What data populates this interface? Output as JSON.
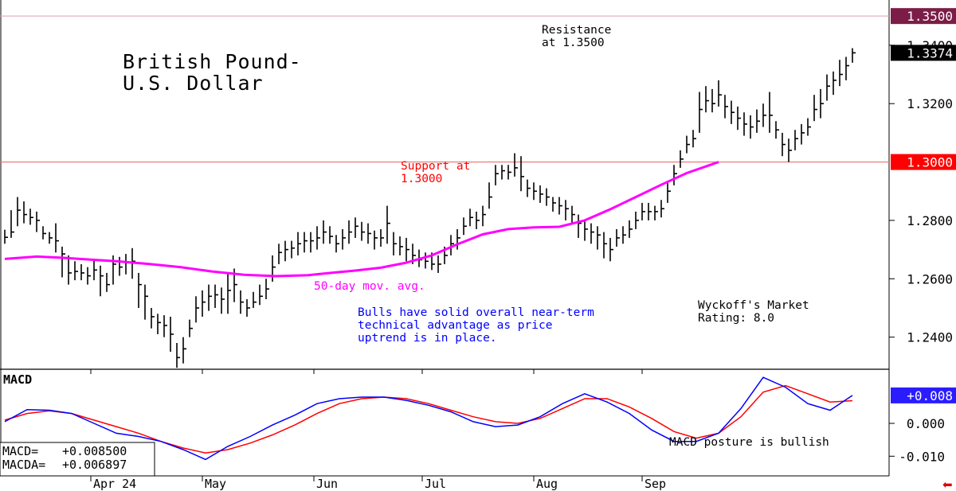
{
  "chart_data": {
    "type": "ohlc",
    "title": "British Pound-\nU.S. Dollar",
    "title_lines": [
      "British Pound-",
      "U.S. Dollar"
    ],
    "y_ticks": [
      "1.3400",
      "1.3200",
      "1.2800",
      "1.2600",
      "1.2400"
    ],
    "y_tick_values": [
      1.34,
      1.32,
      1.28,
      1.26,
      1.24
    ],
    "ylim": [
      1.229,
      1.3555
    ],
    "last_price_label": "1.3374",
    "last_price": 1.3374,
    "resistance": {
      "value": 1.35,
      "label": "1.3500",
      "text_lines": [
        "Resistance",
        "at 1.3500"
      ]
    },
    "support": {
      "value": 1.3,
      "label": "1.3000",
      "text_lines": [
        "Support at",
        "1.3000"
      ]
    },
    "ma_label": "50-day mov. avg.",
    "ma_series": [
      1.2668,
      1.2672,
      1.2676,
      1.2672,
      1.2667,
      1.266,
      1.2651,
      1.264,
      1.2625,
      1.2614,
      1.2609,
      1.2612,
      1.262,
      1.2628,
      1.2638,
      1.2655,
      1.268,
      1.2718,
      1.2752,
      1.277,
      1.2776,
      1.2778,
      1.28,
      1.2838,
      1.288,
      1.2922,
      1.2962,
      1.3
    ],
    "ma_x_days": [
      0,
      5,
      10,
      18,
      25,
      35,
      45,
      55,
      65,
      75,
      85,
      95,
      102,
      110,
      118,
      126,
      134,
      142,
      150,
      158,
      166,
      174,
      182,
      190,
      198,
      206,
      214,
      224
    ],
    "comment_lines": [
      "Bulls have solid overall near-term",
      "technical advantage as price",
      "uptrend is in place."
    ],
    "rating_lines": [
      "Wyckoff's Market",
      "Rating: 8.0"
    ],
    "x_ticks": [
      "Apr 24",
      "May",
      "Jun",
      "Jul",
      "Aug",
      "Sep"
    ],
    "x_tick_days": [
      27,
      62,
      97,
      131,
      166,
      200
    ],
    "bars": [
      [
        0,
        1.2768,
        1.2742,
        1.272
      ],
      [
        2,
        1.2835,
        1.276,
        1.274
      ],
      [
        4,
        1.288,
        1.2835,
        1.278
      ],
      [
        6,
        1.2865,
        1.282,
        1.279
      ],
      [
        8,
        1.284,
        1.281,
        1.2785
      ],
      [
        10,
        1.283,
        1.28,
        1.276
      ],
      [
        12,
        1.278,
        1.2755,
        1.2735
      ],
      [
        14,
        1.276,
        1.274,
        1.272
      ],
      [
        16,
        1.279,
        1.273,
        1.269
      ],
      [
        18,
        1.271,
        1.2685,
        1.2605
      ],
      [
        20,
        1.268,
        1.262,
        1.258
      ],
      [
        22,
        1.266,
        1.2625,
        1.2595
      ],
      [
        24,
        1.265,
        1.262,
        1.2595
      ],
      [
        26,
        1.264,
        1.261,
        1.258
      ],
      [
        28,
        1.2665,
        1.263,
        1.2595
      ],
      [
        30,
        1.2645,
        1.261,
        1.254
      ],
      [
        32,
        1.262,
        1.258,
        1.2555
      ],
      [
        34,
        1.268,
        1.265,
        1.258
      ],
      [
        36,
        1.2675,
        1.264,
        1.261
      ],
      [
        38,
        1.2685,
        1.2655,
        1.2615
      ],
      [
        40,
        1.2705,
        1.266,
        1.26
      ],
      [
        42,
        1.262,
        1.258,
        1.25
      ],
      [
        44,
        1.258,
        1.254,
        1.246
      ],
      [
        46,
        1.25,
        1.247,
        1.243
      ],
      [
        48,
        1.248,
        1.245,
        1.241
      ],
      [
        50,
        1.2475,
        1.244,
        1.24
      ],
      [
        52,
        1.247,
        1.241,
        1.235
      ],
      [
        54,
        1.238,
        1.233,
        1.2295
      ],
      [
        56,
        1.24,
        1.236,
        1.231
      ],
      [
        58,
        1.246,
        1.243,
        1.24
      ],
      [
        60,
        1.254,
        1.25,
        1.245
      ],
      [
        62,
        1.256,
        1.252,
        1.247
      ],
      [
        64,
        1.258,
        1.254,
        1.249
      ],
      [
        66,
        1.258,
        1.2545,
        1.25
      ],
      [
        68,
        1.257,
        1.253,
        1.248
      ],
      [
        70,
        1.262,
        1.256,
        1.248
      ],
      [
        72,
        1.2635,
        1.258,
        1.252
      ],
      [
        74,
        1.256,
        1.252,
        1.248
      ],
      [
        76,
        1.253,
        1.25,
        1.247
      ],
      [
        78,
        1.2555,
        1.252,
        1.25
      ],
      [
        80,
        1.258,
        1.254,
        1.251
      ],
      [
        82,
        1.26,
        1.2565,
        1.253
      ],
      [
        84,
        1.268,
        1.264,
        1.259
      ],
      [
        86,
        1.272,
        1.269,
        1.265
      ],
      [
        88,
        1.273,
        1.27,
        1.266
      ],
      [
        90,
        1.273,
        1.2705,
        1.267
      ],
      [
        92,
        1.276,
        1.272,
        1.268
      ],
      [
        94,
        1.276,
        1.273,
        1.269
      ],
      [
        96,
        1.276,
        1.273,
        1.269
      ],
      [
        98,
        1.278,
        1.274,
        1.27
      ],
      [
        100,
        1.28,
        1.276,
        1.272
      ],
      [
        102,
        1.278,
        1.2745,
        1.272
      ],
      [
        104,
        1.275,
        1.272,
        1.269
      ],
      [
        106,
        1.277,
        1.274,
        1.27
      ],
      [
        108,
        1.28,
        1.276,
        1.272
      ],
      [
        110,
        1.281,
        1.278,
        1.274
      ],
      [
        112,
        1.2795,
        1.276,
        1.273
      ],
      [
        114,
        1.279,
        1.2755,
        1.272
      ],
      [
        116,
        1.2765,
        1.274,
        1.27
      ],
      [
        118,
        1.277,
        1.274,
        1.271
      ],
      [
        120,
        1.285,
        1.279,
        1.272
      ],
      [
        122,
        1.276,
        1.272,
        1.268
      ],
      [
        124,
        1.2745,
        1.271,
        1.268
      ],
      [
        126,
        1.274,
        1.27,
        1.266
      ],
      [
        128,
        1.272,
        1.268,
        1.265
      ],
      [
        130,
        1.27,
        1.2665,
        1.264
      ],
      [
        132,
        1.269,
        1.266,
        1.2635
      ],
      [
        134,
        1.269,
        1.265,
        1.263
      ],
      [
        136,
        1.268,
        1.265,
        1.262
      ],
      [
        138,
        1.271,
        1.268,
        1.265
      ],
      [
        140,
        1.275,
        1.272,
        1.268
      ],
      [
        142,
        1.277,
        1.274,
        1.27
      ],
      [
        144,
        1.281,
        1.278,
        1.275
      ],
      [
        146,
        1.284,
        1.281,
        1.278
      ],
      [
        148,
        1.283,
        1.28,
        1.277
      ],
      [
        150,
        1.285,
        1.282,
        1.278
      ],
      [
        152,
        1.293,
        1.288,
        1.284
      ],
      [
        154,
        1.299,
        1.296,
        1.292
      ],
      [
        156,
        1.299,
        1.297,
        1.294
      ],
      [
        158,
        1.299,
        1.2965,
        1.294
      ],
      [
        160,
        1.303,
        1.298,
        1.295
      ],
      [
        162,
        1.302,
        1.295,
        1.29
      ],
      [
        164,
        1.294,
        1.291,
        1.288
      ],
      [
        166,
        1.293,
        1.29,
        1.287
      ],
      [
        168,
        1.292,
        1.289,
        1.286
      ],
      [
        170,
        1.291,
        1.288,
        1.285
      ],
      [
        172,
        1.288,
        1.286,
        1.283
      ],
      [
        174,
        1.288,
        1.285,
        1.282
      ],
      [
        176,
        1.287,
        1.284,
        1.28
      ],
      [
        178,
        1.285,
        1.282,
        1.279
      ],
      [
        180,
        1.282,
        1.279,
        1.274
      ],
      [
        182,
        1.28,
        1.277,
        1.273
      ],
      [
        184,
        1.279,
        1.276,
        1.272
      ],
      [
        186,
        1.278,
        1.275,
        1.27
      ],
      [
        188,
        1.276,
        1.272,
        1.267
      ],
      [
        190,
        1.274,
        1.27,
        1.266
      ],
      [
        192,
        1.277,
        1.274,
        1.271
      ],
      [
        194,
        1.278,
        1.275,
        1.272
      ],
      [
        196,
        1.28,
        1.277,
        1.274
      ],
      [
        198,
        1.283,
        1.28,
        1.277
      ],
      [
        200,
        1.286,
        1.283,
        1.28
      ],
      [
        202,
        1.286,
        1.283,
        1.28
      ],
      [
        204,
        1.285,
        1.283,
        1.28
      ],
      [
        206,
        1.287,
        1.284,
        1.281
      ],
      [
        208,
        1.293,
        1.29,
        1.286
      ],
      [
        210,
        1.299,
        1.296,
        1.292
      ],
      [
        212,
        1.304,
        1.301,
        1.298
      ],
      [
        214,
        1.309,
        1.306,
        1.303
      ],
      [
        216,
        1.311,
        1.308,
        1.305
      ],
      [
        218,
        1.324,
        1.318,
        1.31
      ],
      [
        220,
        1.326,
        1.321,
        1.317
      ],
      [
        222,
        1.325,
        1.32,
        1.317
      ],
      [
        224,
        1.328,
        1.323,
        1.319
      ],
      [
        226,
        1.323,
        1.319,
        1.315
      ],
      [
        228,
        1.321,
        1.317,
        1.313
      ],
      [
        230,
        1.319,
        1.315,
        1.311
      ],
      [
        232,
        1.317,
        1.313,
        1.309
      ],
      [
        234,
        1.316,
        1.312,
        1.308
      ],
      [
        236,
        1.318,
        1.314,
        1.31
      ],
      [
        238,
        1.32,
        1.316,
        1.312
      ],
      [
        240,
        1.324,
        1.316,
        1.31
      ],
      [
        242,
        1.314,
        1.311,
        1.308
      ],
      [
        244,
        1.31,
        1.306,
        1.302
      ],
      [
        246,
        1.308,
        1.304,
        1.3
      ],
      [
        248,
        1.311,
        1.308,
        1.304
      ],
      [
        250,
        1.313,
        1.31,
        1.306
      ],
      [
        252,
        1.315,
        1.312,
        1.309
      ],
      [
        254,
        1.323,
        1.318,
        1.314
      ],
      [
        256,
        1.325,
        1.32,
        1.315
      ],
      [
        258,
        1.33,
        1.326,
        1.321
      ],
      [
        260,
        1.331,
        1.328,
        1.323
      ],
      [
        262,
        1.335,
        1.33,
        1.326
      ],
      [
        264,
        1.336,
        1.333,
        1.328
      ],
      [
        266,
        1.339,
        1.3374,
        1.334
      ]
    ],
    "macd_label": "MACD",
    "macd_readout": [
      "MACD=",
      "+0.008500"
    ],
    "macda_readout": [
      "MACDA=",
      "+0.006897"
    ],
    "macd_tick_labels": [
      "0.000",
      "-0.010"
    ],
    "macd_tick_values": [
      0.0,
      -0.01
    ],
    "macd_last_label": "+0.008",
    "macd_note": "MACD posture is bullish",
    "macd_ylim": [
      -0.0155,
      0.0155
    ],
    "macd_x_days": [
      0,
      7,
      14,
      21,
      28,
      35,
      42,
      49,
      56,
      63,
      70,
      77,
      84,
      91,
      98,
      105,
      112,
      119,
      126,
      133,
      140,
      147,
      154,
      161,
      168,
      175,
      182,
      189,
      196,
      203,
      210,
      217,
      224,
      231,
      238,
      245,
      252,
      259,
      266
    ],
    "macd_series": [
      0.0005,
      0.0042,
      0.004,
      0.003,
      0.0,
      -0.003,
      -0.004,
      -0.0055,
      -0.008,
      -0.011,
      -0.007,
      -0.004,
      -0.0005,
      0.0025,
      0.006,
      0.0075,
      0.008,
      0.008,
      0.007,
      0.0055,
      0.0035,
      0.0005,
      -0.001,
      -0.0005,
      0.002,
      0.006,
      0.009,
      0.0065,
      0.003,
      -0.002,
      -0.0055,
      -0.0055,
      -0.003,
      0.0045,
      0.014,
      0.011,
      0.006,
      0.004,
      0.0085
    ],
    "macda_series": [
      0.001,
      0.003,
      0.0038,
      0.003,
      0.001,
      -0.001,
      -0.003,
      -0.0055,
      -0.0075,
      -0.009,
      -0.008,
      -0.006,
      -0.0035,
      -0.0005,
      0.003,
      0.006,
      0.0075,
      0.008,
      0.0075,
      0.006,
      0.004,
      0.002,
      0.0005,
      0.0,
      0.0015,
      0.0045,
      0.0075,
      0.0075,
      0.005,
      0.0015,
      -0.0025,
      -0.0045,
      -0.003,
      0.002,
      0.0095,
      0.0115,
      0.009,
      0.0065,
      0.0069
    ]
  },
  "colors": {
    "grid_line": "#e0c8cc",
    "support_line": "#e9716f",
    "resistance_line": "#d9a2ab",
    "ma_line": "#ff00ff",
    "support_text": "#ff0000",
    "comment_text": "#0000ff",
    "macd_line": "#0000ff",
    "macda_line": "#ff0000",
    "resistance_badge": "#7b1d47",
    "support_badge": "#ff0000",
    "last_price_badge": "#000000",
    "macd_badge": "#2a1cff"
  },
  "nav": {
    "prev_arrow": "arrow-left-icon"
  }
}
